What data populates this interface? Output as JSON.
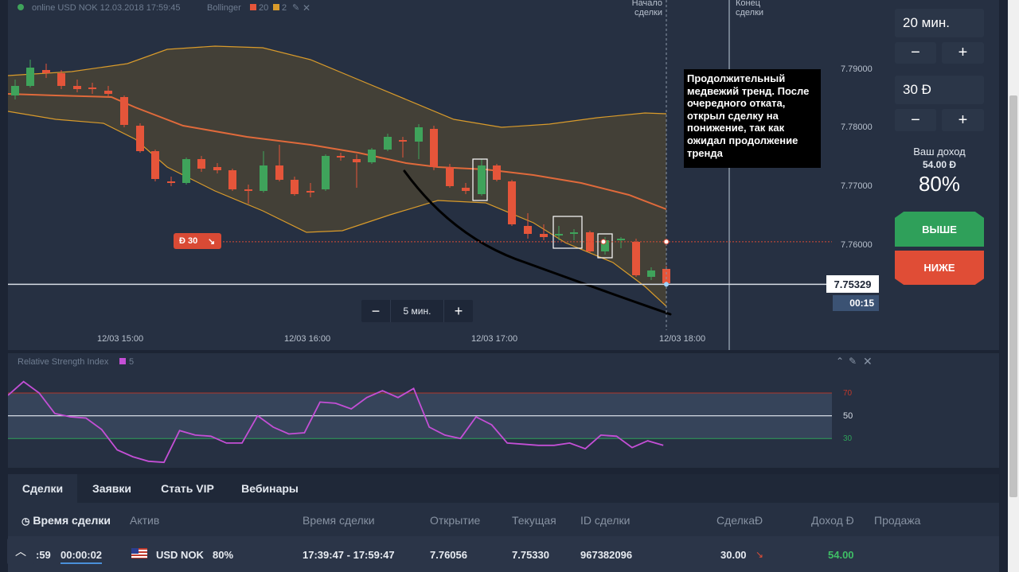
{
  "chart": {
    "title": "online USD NOK 12.03.2018 17:59:45",
    "indicator_name": "Bollinger",
    "indicator_params": [
      "20",
      "2"
    ],
    "start_label": [
      "Начало",
      "сделки"
    ],
    "end_label": [
      "Конец",
      "сделки"
    ],
    "price_ticks": [
      "7.79000",
      "7.78000",
      "7.77000",
      "7.76000"
    ],
    "current_price": "7.75329",
    "countdown": "00:15",
    "time_ticks": [
      "12/03 15:00",
      "12/03 16:00",
      "12/03 17:00",
      "12/03 18:00"
    ],
    "trade_marker": "Ð 30",
    "timeframe_label": "5 мин.",
    "annotation": [
      "Продолжительный",
      "медвежий тренд. После",
      "очередного отката,",
      "открыл сделку на",
      "понижение, так как",
      "ожидал продолжение",
      "тренда"
    ]
  },
  "rsi": {
    "title": "Relative Strength Index",
    "period": "5",
    "levels": [
      "70",
      "50",
      "30"
    ]
  },
  "panel": {
    "time_value": "20 мин.",
    "amount_value": "30 Ð",
    "minus": "−",
    "plus": "+",
    "income_label": "Ваш доход",
    "income_value": "54.00 Ð",
    "percent": "80%",
    "up_label": "ВЫШЕ",
    "down_label": "НИЖЕ"
  },
  "tabs": [
    "Сделки",
    "Заявки",
    "Стать VIP",
    "Вебинары"
  ],
  "table": {
    "headers": [
      "Время сделки",
      "Актив",
      "Время сделки",
      "Открытие",
      "Текущая",
      "ID сделки",
      "СделкаÐ",
      "Доход Ð",
      "Продажа"
    ],
    "row": {
      "time_a": ":59",
      "time_b": "00:00:02",
      "asset": "USD NOK",
      "asset_pct": "80%",
      "period": "17:39:47 - 17:59:47",
      "open": "7.76056",
      "current": "7.75330",
      "id": "967382096",
      "amount": "30.00",
      "income": "54.00"
    }
  },
  "colors": {
    "bull": "#3fa35b",
    "bear": "#e5553a",
    "band": "#d99b2b",
    "sma": "#e06a3b",
    "rsi": "#c44fd6",
    "accent_green": "#2fa05a",
    "accent_red": "#e04d36"
  }
}
